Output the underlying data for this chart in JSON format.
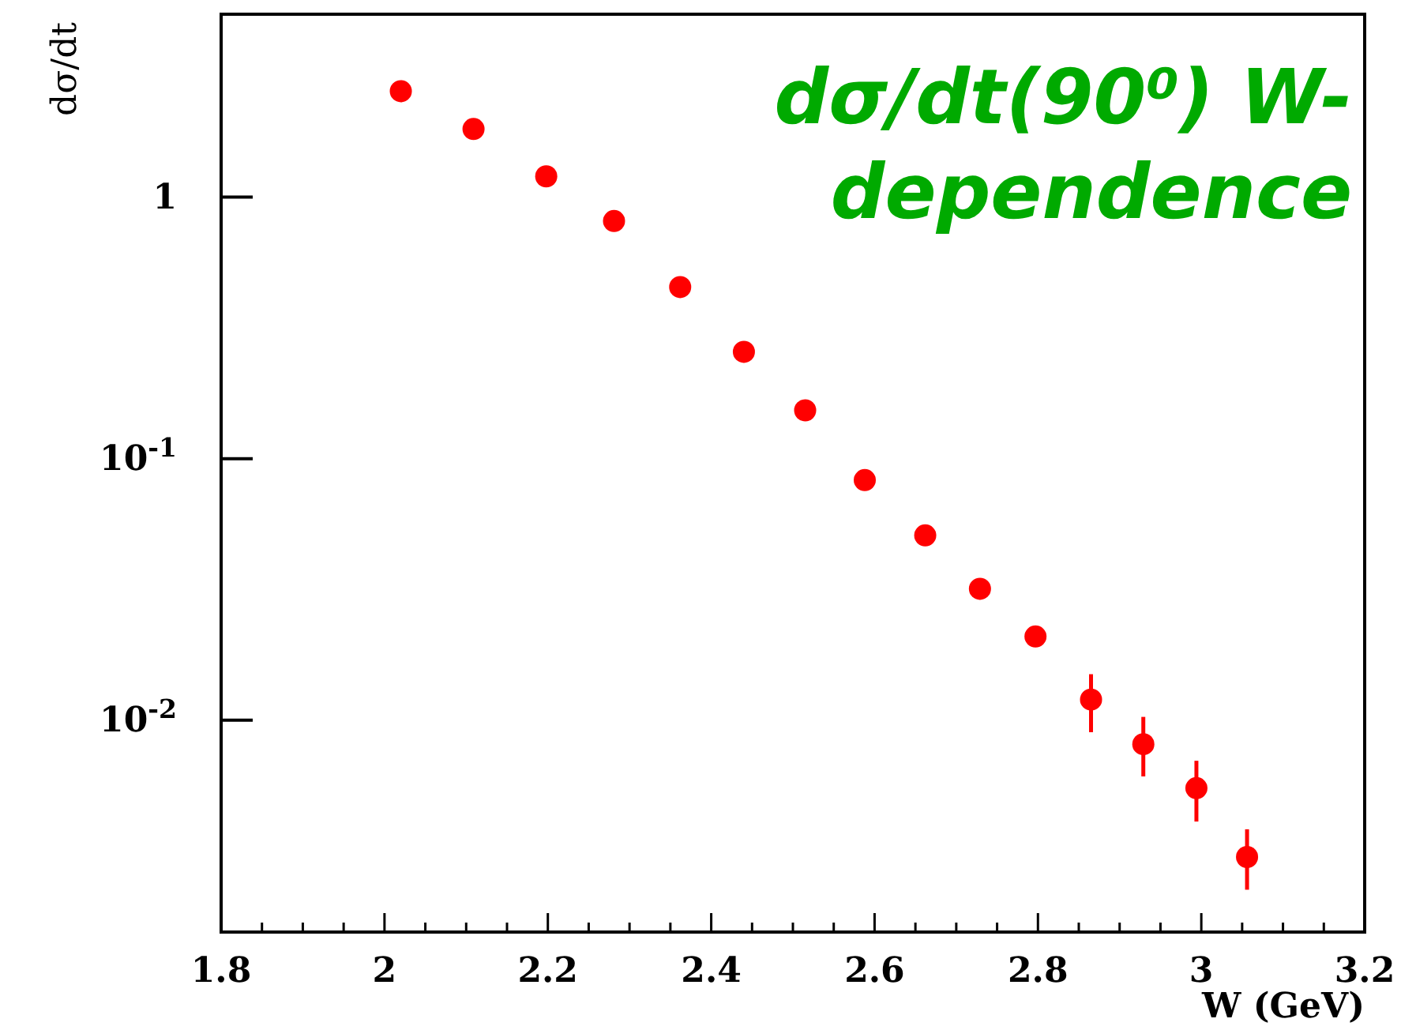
{
  "chart_data": {
    "type": "scatter",
    "title": "dσ/dt(90⁰) W-dependence",
    "xlabel": "W (GeV)",
    "ylabel": "dσ/dt",
    "log": "y",
    "grid": false,
    "marker": "circle",
    "xlim": [
      1.8,
      3.2
    ],
    "ylim": [
      0.00155,
      5
    ],
    "xticks": [
      1.8,
      {
        "value": 1.85,
        "label": null
      },
      {
        "value": 1.9,
        "label": null
      },
      {
        "value": 1.95,
        "label": null
      },
      2,
      {
        "value": 2.05,
        "label": null
      },
      {
        "value": 2.1,
        "label": null
      },
      {
        "value": 2.15,
        "label": null
      },
      2.2,
      {
        "value": 2.25,
        "label": null
      },
      {
        "value": 2.3,
        "label": null
      },
      {
        "value": 2.35,
        "label": null
      },
      2.4,
      {
        "value": 2.45,
        "label": null
      },
      {
        "value": 2.5,
        "label": null
      },
      {
        "value": 2.55,
        "label": null
      },
      2.6,
      {
        "value": 2.65,
        "label": null
      },
      {
        "value": 2.7,
        "label": null
      },
      {
        "value": 2.75,
        "label": null
      },
      2.8,
      {
        "value": 2.85,
        "label": null
      },
      {
        "value": 2.9,
        "label": null
      },
      {
        "value": 2.95,
        "label": null
      },
      3,
      {
        "value": 3.05,
        "label": null
      },
      {
        "value": 3.1,
        "label": null
      },
      {
        "value": 3.15,
        "label": null
      },
      3.2
    ],
    "yticks": [
      {
        "value": 0.01,
        "label": "10$^{-2}$"
      },
      {
        "value": 0.1,
        "label": "10$^{-1}$"
      },
      1
    ],
    "series": [
      {
        "color": "#ff0000",
        "x": [
          2.02,
          2.109,
          2.198,
          2.281,
          2.362,
          2.44,
          2.515,
          2.588,
          2.662,
          2.729,
          2.797,
          2.865,
          2.929,
          2.994,
          3.056
        ],
        "values": [
          2.54,
          1.82,
          1.2,
          0.81,
          0.453,
          0.256,
          0.153,
          0.0828,
          0.0509,
          0.0318,
          0.0209,
          0.012,
          0.0081,
          0.0055,
          0.003
        ],
        "errors": [
          null,
          null,
          null,
          null,
          null,
          null,
          null,
          null,
          null,
          null,
          null,
          [
            0.009,
            0.015
          ],
          [
            0.0061,
            0.0103
          ],
          [
            0.0041,
            0.007
          ],
          [
            0.00225,
            0.00383
          ]
        ]
      }
    ]
  }
}
